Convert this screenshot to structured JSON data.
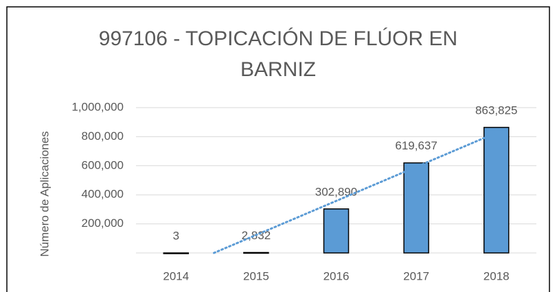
{
  "chart_data": {
    "type": "bar",
    "title_lines": [
      "997106 - TOPICACIÓN DE FLÚOR EN",
      "BARNIZ"
    ],
    "y_label": "Número de Aplicaciones",
    "categories": [
      "2014",
      "2015",
      "2016",
      "2017",
      "2018"
    ],
    "values": [
      3,
      2832,
      302890,
      619637,
      863825
    ],
    "value_labels": [
      "3",
      "2,832",
      "302,890",
      "619,637",
      "863,825"
    ],
    "color": "#5b9bd5",
    "ylim": [
      0,
      1000000
    ],
    "yticks": [
      {
        "value": 200000,
        "label": "200,000"
      },
      {
        "value": 400000,
        "label": "400,000"
      },
      {
        "value": 600000,
        "label": "600,000"
      },
      {
        "value": 800000,
        "label": "800,000"
      },
      {
        "value": 1000000,
        "label": "1,000,000"
      }
    ],
    "grid": true,
    "trendline": "linear"
  }
}
